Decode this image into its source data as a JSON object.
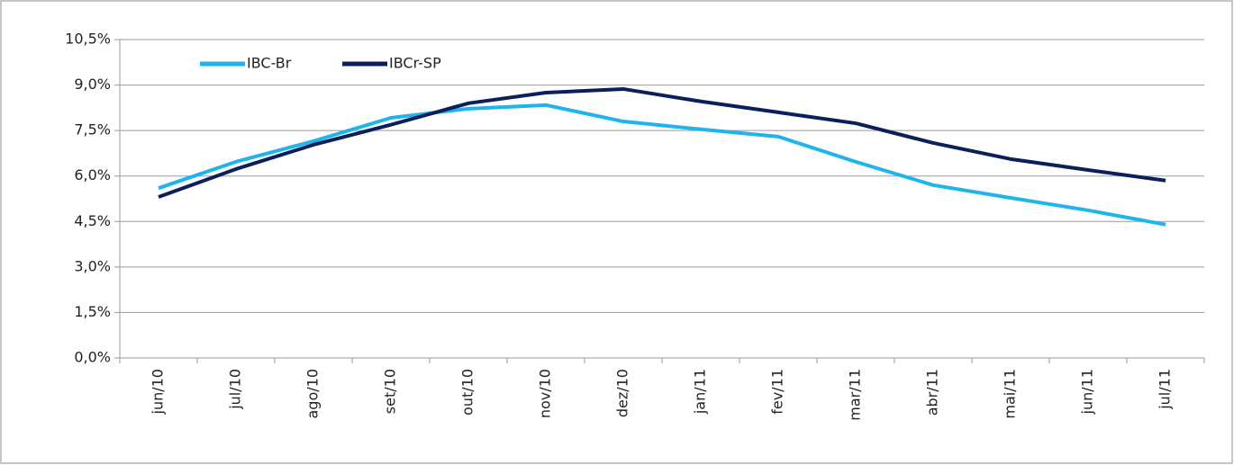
{
  "chart_data": {
    "type": "line",
    "categories": [
      "jun/10",
      "jul/10",
      "ago/10",
      "set/10",
      "out/10",
      "nov/10",
      "dez/10",
      "jan/11",
      "fev/11",
      "mar/11",
      "abr/11",
      "mai/11",
      "jun/11",
      "jul/11"
    ],
    "series": [
      {
        "name": "IBC-Br",
        "color": "#1fb4ec",
        "values": [
          5.6,
          6.47,
          7.15,
          7.92,
          8.22,
          8.34,
          7.8,
          7.54,
          7.3,
          6.47,
          5.7,
          5.28,
          4.87,
          4.4
        ]
      },
      {
        "name": "IBCr-SP",
        "color": "#0b1f5c",
        "values": [
          5.31,
          6.23,
          7.03,
          7.69,
          8.4,
          8.75,
          8.87,
          8.46,
          8.1,
          7.74,
          7.09,
          6.56,
          6.2,
          5.85
        ]
      }
    ],
    "ylim": [
      0,
      10.5
    ],
    "yticks": [
      {
        "value": 0,
        "label": "0,0%"
      },
      {
        "value": 1.5,
        "label": "1,5%"
      },
      {
        "value": 3,
        "label": "3,0%"
      },
      {
        "value": 4.5,
        "label": "4,5%"
      },
      {
        "value": 6,
        "label": "6,0%"
      },
      {
        "value": 7.5,
        "label": "7,5%"
      },
      {
        "value": 9,
        "label": "9,0%"
      },
      {
        "value": 10.5,
        "label": "10,5%"
      }
    ],
    "grid": true,
    "legend": "top-left"
  }
}
